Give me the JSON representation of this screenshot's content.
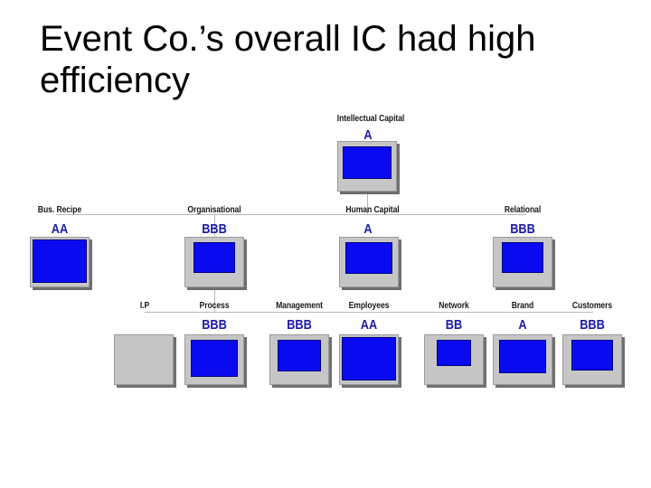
{
  "title_lines": [
    "Event Co.’s overall IC had high",
    "efficiency"
  ],
  "colors": {
    "fill": "#0a0af0",
    "card": "#c6c6c6",
    "rating": "#1a1aa8"
  },
  "nodes": {
    "intellectual_capital": {
      "label": "Intellectual Capital",
      "rating": "A"
    },
    "bus_recipe": {
      "label": "Bus. Recipe",
      "rating": "AA"
    },
    "organisational": {
      "label": "Organisational",
      "rating": "BBB"
    },
    "human_capital": {
      "label": "Human Capital",
      "rating": "A"
    },
    "relational": {
      "label": "Relational",
      "rating": "BBB"
    },
    "ip": {
      "label": "I.P",
      "rating": ""
    },
    "process": {
      "label": "Process",
      "rating": "BBB"
    },
    "management": {
      "label": "Management",
      "rating": "BBB"
    },
    "employees": {
      "label": "Employees",
      "rating": "AA"
    },
    "network": {
      "label": "Network",
      "rating": "BB"
    },
    "brand": {
      "label": "Brand",
      "rating": "A"
    },
    "customers": {
      "label": "Customers",
      "rating": "BBB"
    }
  }
}
